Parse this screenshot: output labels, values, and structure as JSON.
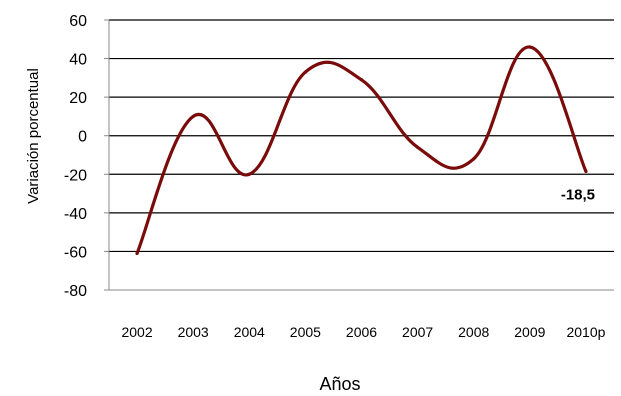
{
  "chart_data": {
    "type": "line",
    "title": "",
    "xlabel": "Años",
    "ylabel": "Variación porcentual",
    "categories": [
      "2002",
      "2003",
      "2004",
      "2005",
      "2006",
      "2007",
      "2008",
      "2009",
      "2010p"
    ],
    "series": [
      {
        "values": [
          -61,
          10,
          -20,
          33,
          29,
          -6,
          -12,
          46,
          -18.5
        ],
        "color": "#7a0b0b"
      }
    ],
    "ylim": [
      -80,
      60
    ],
    "yticks": [
      "60",
      "40",
      "20",
      "0",
      "-20",
      "-40",
      "-60",
      "-80"
    ],
    "grid": true,
    "data_labels": [
      {
        "index": 8,
        "text": "-18,5"
      }
    ]
  }
}
